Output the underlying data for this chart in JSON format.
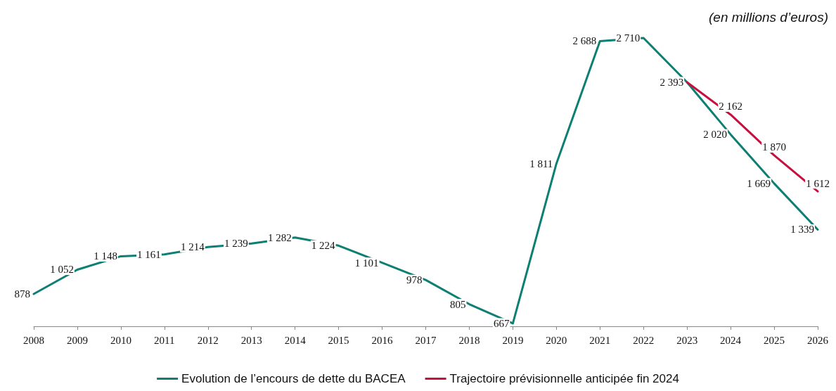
{
  "chart_data": {
    "type": "line",
    "title": "(en millions d’euros)",
    "categories": [
      "2008",
      "2009",
      "2010",
      "2011",
      "2012",
      "2013",
      "2014",
      "2015",
      "2016",
      "2017",
      "2018",
      "2019",
      "2020",
      "2021",
      "2022",
      "2023",
      "2024",
      "2025",
      "2026"
    ],
    "series": [
      {
        "name": "Evolution de l’encours de dette du BACEA",
        "color": "#0e7f73",
        "values": [
          878,
          1052,
          1148,
          1161,
          1214,
          1239,
          1282,
          1224,
          1101,
          978,
          805,
          667,
          1811,
          2688,
          2710,
          2393,
          2020,
          1669,
          1339
        ],
        "value_labels": [
          "878",
          "1 052",
          "1 148",
          "1 161",
          "1 214",
          "1 239",
          "1 282",
          "1 224",
          "1 101",
          "978",
          "805",
          "667",
          "1 811",
          "2 688",
          "2 710",
          "2 393",
          "2 020",
          "1 669",
          "1 339"
        ]
      },
      {
        "name": "Trajectoire prévisionnelle anticipée fin 2024",
        "color": "#c8103e",
        "values": [
          null,
          null,
          null,
          null,
          null,
          null,
          null,
          null,
          null,
          null,
          null,
          null,
          null,
          null,
          null,
          2393,
          2162,
          1870,
          1612
        ],
        "value_labels": [
          null,
          null,
          null,
          null,
          null,
          null,
          null,
          null,
          null,
          null,
          null,
          null,
          null,
          null,
          null,
          null,
          "2 162",
          "1 870",
          "1 612"
        ]
      }
    ],
    "grid": false,
    "legend": "bottom",
    "marker": "none",
    "line_style": "solid"
  }
}
